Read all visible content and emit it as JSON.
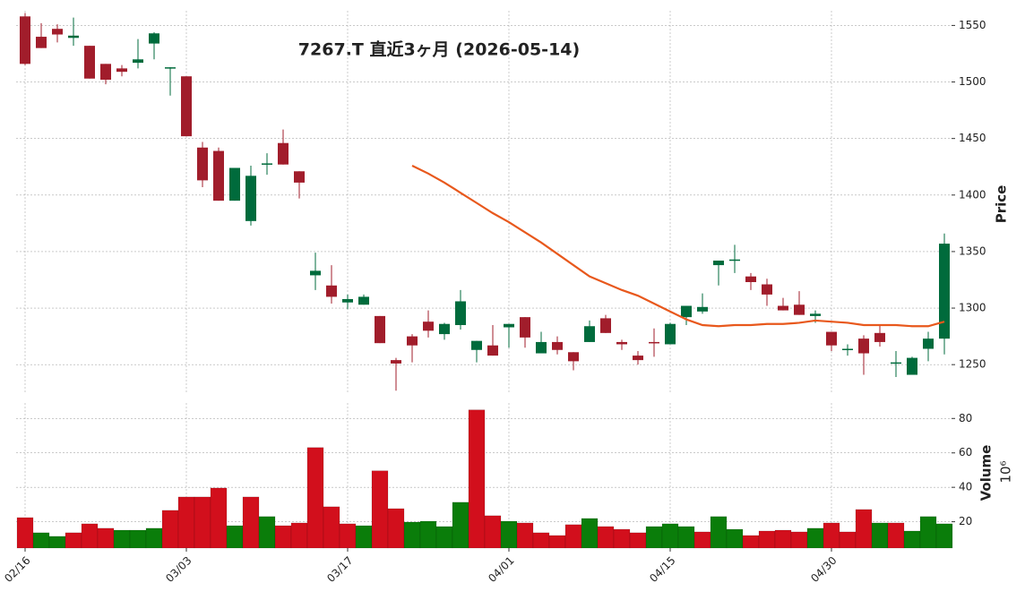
{
  "chart_data": [
    {
      "type": "candlestick",
      "title": "7267.T 直近3ヶ月 (2026-05-14)",
      "ylabel": "Price",
      "categories": [
        "02/16",
        null,
        null,
        null,
        null,
        null,
        null,
        null,
        null,
        null,
        "03/03",
        null,
        null,
        null,
        null,
        null,
        null,
        null,
        null,
        null,
        "03/17",
        null,
        null,
        null,
        null,
        null,
        null,
        null,
        null,
        null,
        "04/01",
        null,
        null,
        null,
        null,
        null,
        null,
        null,
        null,
        null,
        "04/15",
        null,
        null,
        null,
        null,
        null,
        null,
        null,
        null,
        null,
        "04/30",
        null,
        null,
        null,
        null,
        null,
        null,
        null
      ],
      "open": [
        1558,
        1540,
        1547,
        1539,
        1532,
        1516,
        1512,
        1517,
        1534,
        1512,
        1505,
        1442,
        1439,
        1395,
        1377,
        1427,
        1446,
        1421,
        1329,
        1320,
        1305,
        1303,
        1293,
        1254,
        1275,
        1288,
        1277,
        1285,
        1263,
        1267,
        1283,
        1292,
        1260,
        1270,
        1261,
        1270,
        1291,
        1270,
        1258,
        1270,
        1268,
        1292,
        1297,
        1338,
        1342,
        1328,
        1321,
        1302,
        1303,
        1293,
        1279,
        1263,
        1273,
        1278,
        1251,
        1241,
        1264,
        1273
      ],
      "high": [
        1561,
        1552,
        1551,
        1557,
        1532,
        1516,
        1515,
        1538,
        1544,
        1513,
        1505,
        1447,
        1442,
        1424,
        1426,
        1437,
        1458,
        1421,
        1349,
        1338,
        1312,
        1312,
        1293,
        1256,
        1277,
        1298,
        1287,
        1316,
        1271,
        1285,
        1286,
        1292,
        1279,
        1275,
        1261,
        1289,
        1294,
        1272,
        1262,
        1282,
        1287,
        1302,
        1313,
        1342,
        1356,
        1331,
        1326,
        1309,
        1315,
        1298,
        1279,
        1268,
        1276,
        1285,
        1262,
        1257,
        1279,
        1366
      ],
      "low": [
        1515,
        1530,
        1535,
        1532,
        1503,
        1498,
        1505,
        1512,
        1520,
        1488,
        1452,
        1407,
        1395,
        1395,
        1373,
        1418,
        1427,
        1397,
        1316,
        1304,
        1299,
        1303,
        1269,
        1227,
        1252,
        1274,
        1272,
        1281,
        1252,
        1258,
        1265,
        1265,
        1260,
        1259,
        1245,
        1270,
        1278,
        1263,
        1250,
        1257,
        1268,
        1285,
        1295,
        1320,
        1331,
        1316,
        1302,
        1298,
        1294,
        1287,
        1262,
        1258,
        1241,
        1266,
        1239,
        1241,
        1253,
        1259
      ],
      "close": [
        1516,
        1530,
        1542,
        1541,
        1503,
        1502,
        1509,
        1520,
        1543,
        1513,
        1452,
        1413,
        1395,
        1424,
        1417,
        1428,
        1427,
        1411,
        1333,
        1310,
        1308,
        1310,
        1269,
        1251,
        1267,
        1280,
        1286,
        1306,
        1271,
        1258,
        1286,
        1274,
        1270,
        1263,
        1253,
        1284,
        1278,
        1268,
        1254,
        1269,
        1286,
        1302,
        1301,
        1342,
        1343,
        1323,
        1312,
        1298,
        1294,
        1295,
        1267,
        1264,
        1260,
        1270,
        1252,
        1256,
        1273,
        1357
      ],
      "up_color": "#006b3c",
      "down_color": "#a11d2b",
      "ma": {
        "color": "#e8581c",
        "values": [
          null,
          null,
          null,
          null,
          null,
          null,
          null,
          null,
          null,
          null,
          null,
          null,
          null,
          null,
          null,
          null,
          null,
          null,
          null,
          null,
          null,
          null,
          null,
          null,
          1426,
          1419,
          1411,
          1402,
          1393,
          1384,
          1376,
          1367,
          1358,
          1348,
          1338,
          1328,
          1322,
          1316,
          1311,
          1304,
          1297,
          1290,
          1285,
          1284,
          1285,
          1285,
          1286,
          1286,
          1287,
          1289,
          1288,
          1287,
          1285,
          1285,
          1285,
          1284,
          1284,
          1288
        ]
      },
      "ylim": [
        1224,
        1563
      ],
      "yticks": [
        1250,
        1300,
        1350,
        1400,
        1450,
        1500,
        1550
      ],
      "grid": true
    },
    {
      "type": "bar",
      "ylabel": "Volume",
      "scale_label": "10⁶",
      "values": [
        22.4,
        13.6,
        11.5,
        13.6,
        18.8,
        16.2,
        15.1,
        15.1,
        16.2,
        26.6,
        34.4,
        34.4,
        39.6,
        17.7,
        34.4,
        23,
        17.7,
        19.3,
        63.1,
        28.7,
        18.8,
        17.7,
        49.6,
        27.6,
        19.8,
        20.3,
        17.2,
        31.3,
        85,
        23.5,
        20.3,
        19.3,
        13.6,
        12,
        18.3,
        21.9,
        17.2,
        15.6,
        13.6,
        17.2,
        18.8,
        17.2,
        14.1,
        23,
        15.6,
        12,
        14.6,
        15.1,
        14.1,
        16.2,
        19.3,
        14.1,
        27.1,
        19.3,
        19.3,
        14.6,
        23,
        18.8
      ],
      "up_color": "#0a7d0a",
      "down_color": "#d20f1c",
      "ylim": [
        4.7,
        89
      ],
      "yticks": [
        20,
        40,
        60,
        80
      ],
      "grid": true
    }
  ]
}
